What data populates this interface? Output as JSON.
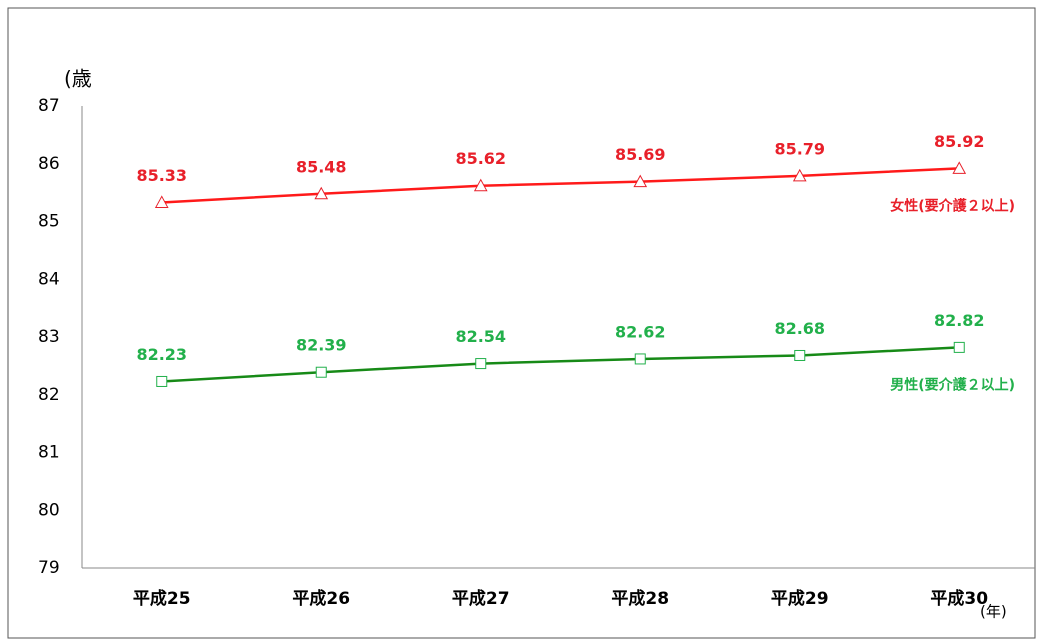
{
  "chart_data": {
    "type": "line",
    "y_label": "(歳",
    "x_label": "(年)",
    "categories": [
      "平成25",
      "平成26",
      "平成27",
      "平成28",
      "平成29",
      "平成30"
    ],
    "series": [
      {
        "name": "女性(要介護２以上)",
        "color": "#ff1a1a",
        "label_color": "#e8202a",
        "marker": "triangle",
        "values": [
          85.33,
          85.48,
          85.62,
          85.69,
          85.79,
          85.92
        ]
      },
      {
        "name": "男性(要介護２以上)",
        "color": "#178a17",
        "label_color": "#22b04b",
        "marker": "square",
        "values": [
          82.23,
          82.39,
          82.54,
          82.62,
          82.68,
          82.82
        ]
      }
    ],
    "ylim": [
      79,
      87
    ],
    "yticks": [
      79,
      80,
      81,
      82,
      83,
      84,
      85,
      86,
      87
    ],
    "grid": false
  }
}
